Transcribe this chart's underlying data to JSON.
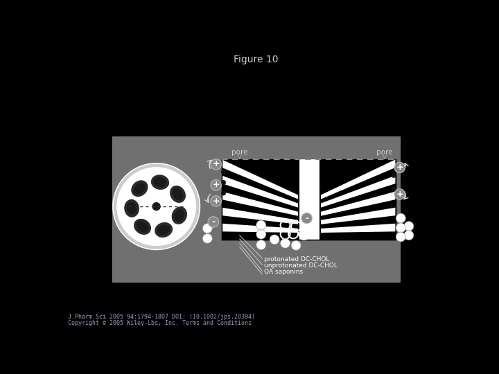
{
  "title": "Figure 10",
  "title_fontsize": 10,
  "title_color": "#cccccc",
  "bg_color": "#000000",
  "panel_bg": "#707070",
  "footer_line1": "J.Pharm.Sci 2005 94:1794-1807 DOI: (10.1002/jps.20394)",
  "footer_line2": "Copyright © 2005 Wiley-Lbs, Inc. Terms and Conditions",
  "footer_color": "#9999bb",
  "footer_fontsize": 6.0
}
